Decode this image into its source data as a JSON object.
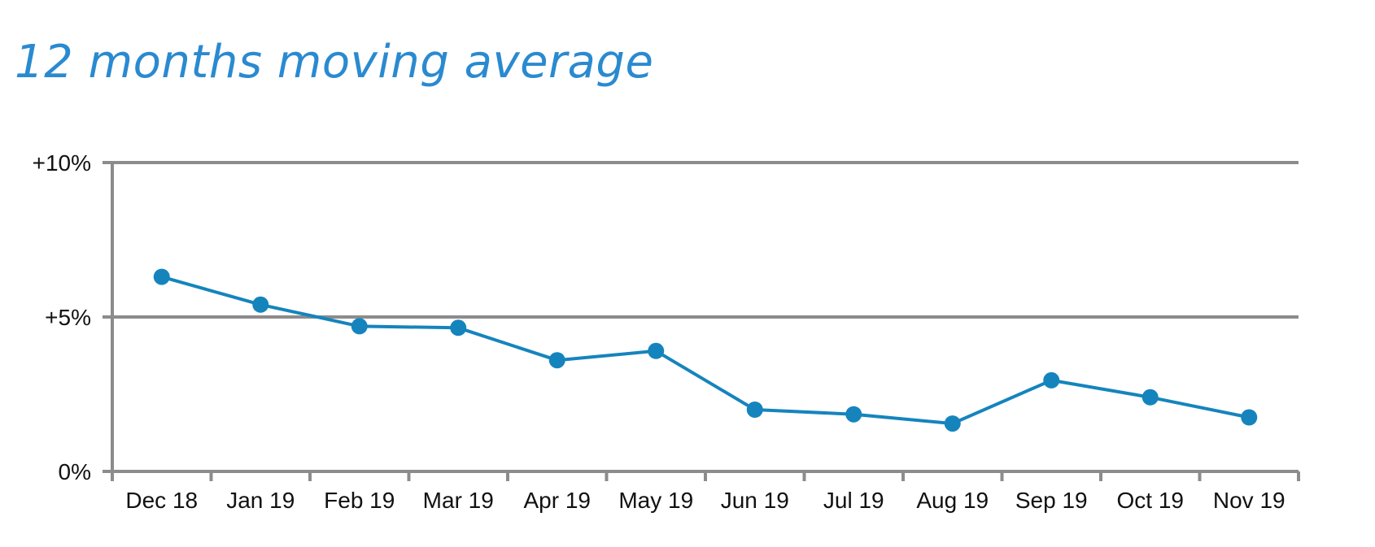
{
  "chart_data": {
    "type": "line",
    "title": "12 months moving average",
    "xlabel": "",
    "ylabel": "",
    "categories": [
      "Dec 18",
      "Jan 19",
      "Feb 19",
      "Mar 19",
      "Apr 19",
      "May 19",
      "Jun 19",
      "Jul 19",
      "Aug 19",
      "Sep 19",
      "Oct 19",
      "Nov 19"
    ],
    "series": [
      {
        "values": [
          6.3,
          5.4,
          4.7,
          4.65,
          3.6,
          3.9,
          2.0,
          1.85,
          1.55,
          2.95,
          2.4,
          1.75
        ]
      }
    ],
    "ylim": [
      0,
      10
    ],
    "yticks": [
      0,
      5,
      10
    ],
    "ytick_labels": [
      "0%",
      "+5%",
      "+10%"
    ],
    "grid": "horizontal",
    "legend": "none",
    "colors": {
      "line": "#1584bd",
      "marker": "#1584bd",
      "grid": "#8c8c8c",
      "title": "#2a8ad0"
    }
  }
}
